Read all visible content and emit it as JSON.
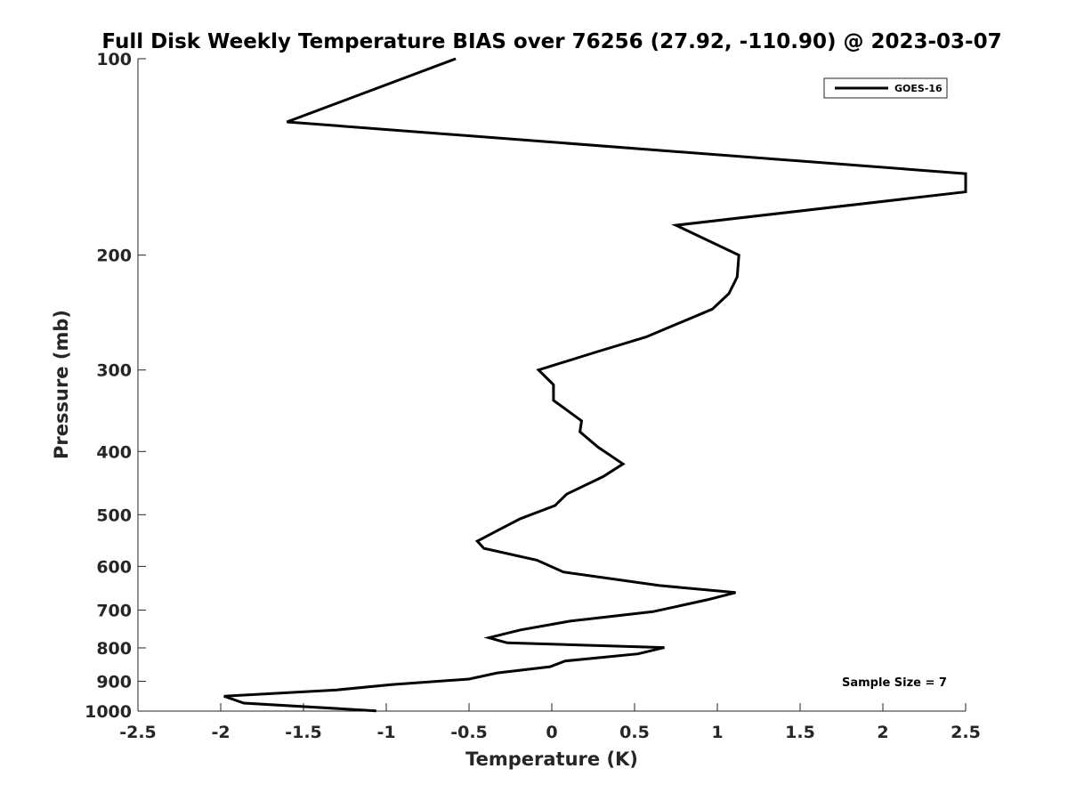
{
  "chart_data": {
    "type": "line",
    "title": "Full Disk Weekly Temperature BIAS over 76256 (27.92, -110.90) @ 2023-03-07",
    "xlabel": "Temperature (K)",
    "ylabel": "Pressure (mb)",
    "xlim": [
      -2.5,
      2.5
    ],
    "ylim": [
      100,
      1000
    ],
    "y_scale": "log",
    "y_reversed": true,
    "x_ticks": [
      -2.5,
      -2,
      -1.5,
      -1,
      -0.5,
      0,
      0.5,
      1,
      1.5,
      2,
      2.5
    ],
    "x_tick_labels": [
      "-2.5",
      "-2",
      "-1.5",
      "-1",
      "-0.5",
      "0",
      "0.5",
      "1",
      "1.5",
      "2",
      "2.5"
    ],
    "y_ticks": [
      100,
      200,
      300,
      400,
      500,
      600,
      700,
      800,
      900,
      1000
    ],
    "y_tick_labels": [
      "100",
      "200",
      "300",
      "400",
      "500",
      "600",
      "700",
      "800",
      "900",
      "1000"
    ],
    "grid": false,
    "legend_position": "top-right",
    "annotation": "Sample Size = 7",
    "line_color": "#000000",
    "series": [
      {
        "name": "GOES-16",
        "points": [
          [
            -0.58,
            100
          ],
          [
            -1.6,
            125
          ],
          [
            2.5,
            150
          ],
          [
            2.5,
            160
          ],
          [
            0.75,
            180
          ],
          [
            1.13,
            200
          ],
          [
            1.13,
            200
          ],
          [
            1.12,
            216
          ],
          [
            1.07,
            229
          ],
          [
            0.97,
            242
          ],
          [
            0.57,
            267
          ],
          [
            0.26,
            282
          ],
          [
            -0.08,
            300
          ],
          [
            0.01,
            316
          ],
          [
            0.01,
            334
          ],
          [
            0.18,
            359
          ],
          [
            0.17,
            373
          ],
          [
            0.28,
            394
          ],
          [
            0.43,
            418
          ],
          [
            0.31,
            437
          ],
          [
            0.09,
            465
          ],
          [
            0.02,
            484
          ],
          [
            -0.19,
            507
          ],
          [
            -0.33,
            529
          ],
          [
            -0.45,
            549
          ],
          [
            -0.41,
            563
          ],
          [
            -0.09,
            587
          ],
          [
            0.07,
            612
          ],
          [
            0.65,
            642
          ],
          [
            1.11,
            658
          ],
          [
            0.94,
            675
          ],
          [
            0.61,
            704
          ],
          [
            0.11,
            728
          ],
          [
            -0.19,
            751
          ],
          [
            -0.38,
            772
          ],
          [
            -0.27,
            786
          ],
          [
            0.68,
            799
          ],
          [
            0.52,
            817
          ],
          [
            0.08,
            838
          ],
          [
            -0.01,
            855
          ],
          [
            -0.33,
            874
          ],
          [
            -0.5,
            893
          ],
          [
            -0.97,
            911
          ],
          [
            -1.3,
            928
          ],
          [
            -1.98,
            949
          ],
          [
            -1.86,
            972
          ],
          [
            -1.06,
            999
          ]
        ]
      }
    ]
  }
}
